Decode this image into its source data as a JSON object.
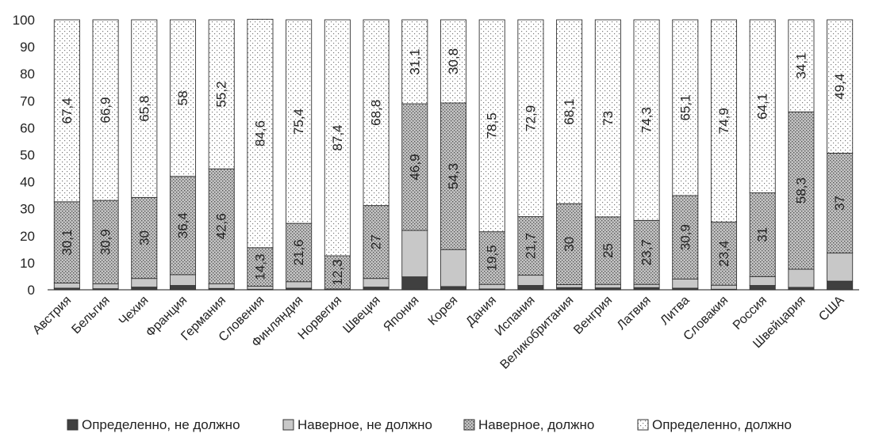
{
  "chart_data": {
    "type": "bar",
    "stacked": true,
    "title": "",
    "xlabel": "",
    "ylabel": "",
    "ylim": [
      0,
      100
    ],
    "yticks": [
      0,
      10,
      20,
      30,
      40,
      50,
      60,
      70,
      80,
      90,
      100
    ],
    "categories": [
      "Австрия",
      "Бельгия",
      "Чехия",
      "Франция",
      "Германия",
      "Словения",
      "Финляндия",
      "Норвегия",
      "Швеция",
      "Япония",
      "Корея",
      "Дания",
      "Испания",
      "Великобритания",
      "Венгрия",
      "Латвия",
      "Литва",
      "Словакия",
      "Россия",
      "Швейцария",
      "США"
    ],
    "series": [
      {
        "name": "Определенно, не должно",
        "color": "#404040",
        "values": [
          0.6,
          0.4,
          1.0,
          1.6,
          0.5,
          0.2,
          0.6,
          0.0,
          1.0,
          4.8,
          1.2,
          0.3,
          1.6,
          0.8,
          0.7,
          0.8,
          0.6,
          0.2,
          1.6,
          0.9,
          3.2
        ],
        "labels": [
          "",
          "",
          "",
          "",
          "",
          "",
          "",
          "",
          "",
          "",
          "",
          "",
          "",
          "",
          "",
          "",
          "",
          "",
          "",
          "",
          ""
        ]
      },
      {
        "name": "Наверное, не должно",
        "color": "#c8c8c8",
        "values": [
          1.9,
          1.8,
          3.2,
          4.0,
          1.7,
          1.1,
          2.4,
          0.3,
          3.2,
          17.2,
          13.7,
          1.7,
          3.8,
          1.1,
          1.3,
          1.2,
          3.4,
          1.5,
          3.3,
          6.7,
          10.4
        ],
        "labels": [
          "",
          "",
          "",
          "",
          "",
          "",
          "",
          "",
          "",
          "",
          "",
          "",
          "",
          "",
          "",
          "",
          "",
          "",
          "",
          "",
          ""
        ]
      },
      {
        "name": "Наверное, должно",
        "color": "#9a9a9a",
        "values": [
          30.1,
          30.9,
          30.0,
          36.4,
          42.6,
          14.3,
          21.6,
          12.3,
          27.0,
          46.9,
          54.3,
          19.5,
          21.7,
          30.0,
          25.0,
          23.7,
          30.9,
          23.4,
          31.0,
          58.3,
          37.0
        ],
        "labels": [
          "30,1",
          "30,9",
          "30",
          "36,4",
          "42,6",
          "14,3",
          "21,6",
          "12,3",
          "27",
          "46,9",
          "54,3",
          "19,5",
          "21,7",
          "30",
          "25",
          "23,7",
          "30,9",
          "23,4",
          "31",
          "58,3",
          "37"
        ]
      },
      {
        "name": "Определенно, должно",
        "color": "#ffffff",
        "values": [
          67.4,
          66.9,
          65.8,
          58.0,
          55.2,
          84.6,
          75.4,
          87.4,
          68.8,
          31.1,
          30.8,
          78.5,
          72.9,
          68.1,
          73.0,
          74.3,
          65.1,
          74.9,
          64.1,
          34.1,
          49.4
        ],
        "labels": [
          "67,4",
          "66,9",
          "65,8",
          "58",
          "55,2",
          "84,6",
          "75,4",
          "87,4",
          "68,8",
          "31,1",
          "30,8",
          "78,5",
          "72,9",
          "68,1",
          "73",
          "74,3",
          "65,1",
          "74,9",
          "64,1",
          "34,1",
          "49,4"
        ]
      }
    ],
    "legend": {
      "position": "bottom",
      "entries": [
        "Определенно, не должно",
        "Наверное, не должно",
        "Наверное, должно",
        "Определенно, должно"
      ]
    },
    "data_label_rotation": "vertical"
  }
}
